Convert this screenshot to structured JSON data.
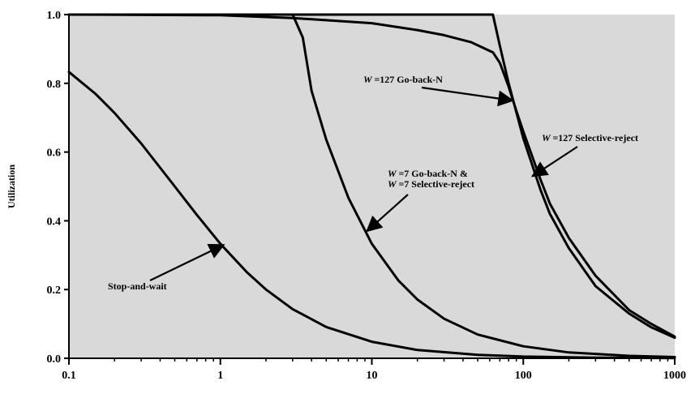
{
  "chart_data": {
    "type": "line",
    "xlabel": "",
    "ylabel": "Utilization",
    "xscale": "log",
    "xlim": [
      0.1,
      1000
    ],
    "ylim": [
      0.0,
      1.0
    ],
    "grid": false,
    "legend": "none",
    "colors": {
      "background": "#d9d9d9",
      "line": "#000000"
    },
    "x_ticks": [
      {
        "value": 0.1,
        "label": "0.1"
      },
      {
        "value": 1,
        "label": "1"
      },
      {
        "value": 10,
        "label": "10"
      },
      {
        "value": 100,
        "label": "100"
      },
      {
        "value": 1000,
        "label": "1000"
      }
    ],
    "y_ticks": [
      {
        "value": 0.0,
        "label": "0.0"
      },
      {
        "value": 0.2,
        "label": "0.2"
      },
      {
        "value": 0.4,
        "label": "0.4"
      },
      {
        "value": 0.6,
        "label": "0.6"
      },
      {
        "value": 0.8,
        "label": "0.8"
      },
      {
        "value": 1.0,
        "label": "1.0"
      }
    ],
    "series": [
      {
        "points": [
          [
            0.1,
            0.833
          ],
          [
            0.15,
            0.769
          ],
          [
            0.2,
            0.714
          ],
          [
            0.3,
            0.625
          ],
          [
            0.5,
            0.5
          ],
          [
            0.7,
            0.417
          ],
          [
            1,
            0.333
          ],
          [
            1.5,
            0.25
          ],
          [
            2,
            0.2
          ],
          [
            3,
            0.143
          ],
          [
            5,
            0.091
          ],
          [
            10,
            0.048
          ],
          [
            20,
            0.024
          ],
          [
            50,
            0.01
          ],
          [
            100,
            0.005
          ],
          [
            300,
            0.002
          ],
          [
            1000,
            0.0005
          ]
        ]
      },
      {
        "points": [
          [
            0.1,
            1.0
          ],
          [
            2.5,
            1.0
          ],
          [
            3,
            1.0
          ],
          [
            3.5,
            0.933
          ],
          [
            4,
            0.778
          ],
          [
            5,
            0.636
          ],
          [
            7,
            0.467
          ],
          [
            10,
            0.333
          ],
          [
            15,
            0.226
          ],
          [
            20,
            0.171
          ],
          [
            30,
            0.115
          ],
          [
            50,
            0.069
          ],
          [
            100,
            0.035
          ],
          [
            200,
            0.017
          ],
          [
            500,
            0.007
          ],
          [
            1000,
            0.0035
          ]
        ]
      },
      {
        "points": [
          [
            0.1,
            1.0
          ],
          [
            1,
            0.998
          ],
          [
            3,
            0.99
          ],
          [
            10,
            0.975
          ],
          [
            20,
            0.955
          ],
          [
            30,
            0.94
          ],
          [
            45,
            0.92
          ],
          [
            63,
            0.89
          ],
          [
            70,
            0.86
          ],
          [
            80,
            0.79
          ],
          [
            90,
            0.72
          ],
          [
            100,
            0.66
          ],
          [
            130,
            0.52
          ],
          [
            150,
            0.45
          ],
          [
            200,
            0.35
          ],
          [
            300,
            0.24
          ],
          [
            500,
            0.14
          ],
          [
            700,
            0.1
          ],
          [
            1000,
            0.063
          ]
        ]
      },
      {
        "points": [
          [
            0.1,
            1.0
          ],
          [
            63,
            1.0
          ],
          [
            70,
            0.91
          ],
          [
            80,
            0.8
          ],
          [
            100,
            0.64
          ],
          [
            130,
            0.49
          ],
          [
            150,
            0.42
          ],
          [
            200,
            0.32
          ],
          [
            300,
            0.21
          ],
          [
            500,
            0.13
          ],
          [
            700,
            0.09
          ],
          [
            1000,
            0.06
          ]
        ]
      }
    ],
    "annotations": [
      {
        "id": "stop-and-wait",
        "lines": [
          {
            "w": "",
            "text": "Stop-and-wait"
          }
        ],
        "arrow_to": [
          1.05,
          0.33
        ]
      },
      {
        "id": "w7",
        "lines": [
          {
            "w": "W",
            "text": "=7 Go-back-N &"
          },
          {
            "w": "W",
            "text": "=7 Selective-reject"
          }
        ],
        "arrow_to": [
          9.3,
          0.37
        ]
      },
      {
        "id": "w127-gbn",
        "lines": [
          {
            "w": "W",
            "text": "=127 Go-back-N"
          }
        ],
        "arrow_to": [
          85,
          0.75
        ]
      },
      {
        "id": "w127-sr",
        "lines": [
          {
            "w": "W",
            "text": "=127 Selective-reject"
          }
        ],
        "arrow_to": [
          115,
          0.53
        ]
      }
    ]
  }
}
